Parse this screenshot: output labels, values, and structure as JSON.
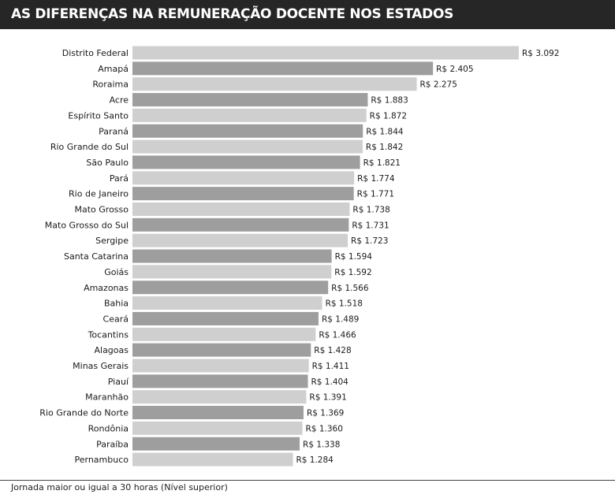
{
  "title": "AS DIFERENÇAS NA REMUNERAÇÃO DOCENTE NOS ESTADOS",
  "footer_note": "Jornada maior ou igual a 30 horas (Nível superior)",
  "colors": {
    "header_bg": "#262626",
    "header_text": "#ffffff",
    "bar_light": "#cfcfcf",
    "bar_dark": "#9e9e9e"
  },
  "chart_data": {
    "type": "bar",
    "orientation": "horizontal",
    "value_prefix": "R$ ",
    "categories": [
      "Distrito Federal",
      "Amapá",
      "Roraima",
      "Acre",
      "Espírito Santo",
      "Paraná",
      "Rio Grande do Sul",
      "São Paulo",
      "Pará",
      "Rio de Janeiro",
      "Mato Grosso",
      "Mato Grosso do Sul",
      "Sergipe",
      "Santa Catarina",
      "Goiás",
      "Amazonas",
      "Bahia",
      "Ceará",
      "Tocantins",
      "Alagoas",
      "Minas Gerais",
      "Piauí",
      "Maranhão",
      "Rio Grande do Norte",
      "Rondônia",
      "Paraíba",
      "Pernambuco"
    ],
    "values": [
      3092,
      2405,
      2275,
      1883,
      1872,
      1844,
      1842,
      1821,
      1774,
      1771,
      1738,
      1731,
      1723,
      1594,
      1592,
      1566,
      1518,
      1489,
      1466,
      1428,
      1411,
      1404,
      1391,
      1369,
      1360,
      1338,
      1284
    ],
    "value_labels": [
      "R$ 3.092",
      "R$ 2.405",
      "R$ 2.275",
      "R$ 1.883",
      "R$ 1.872",
      "R$ 1.844",
      "R$ 1.842",
      "R$ 1.821",
      "R$ 1.774",
      "R$ 1.771",
      "R$ 1.738",
      "R$ 1.731",
      "R$ 1.723",
      "R$ 1.594",
      "R$ 1.592",
      "R$ 1.566",
      "R$ 1.518",
      "R$ 1.489",
      "R$ 1.466",
      "R$ 1.428",
      "R$ 1.411",
      "R$ 1.404",
      "R$ 1.391",
      "R$ 1.369",
      "R$ 1.360",
      "R$ 1.338",
      "R$ 1.284"
    ],
    "bar_shade": [
      "light",
      "dark",
      "light",
      "dark",
      "light",
      "dark",
      "light",
      "dark",
      "light",
      "dark",
      "light",
      "dark",
      "light",
      "dark",
      "light",
      "dark",
      "light",
      "dark",
      "light",
      "dark",
      "light",
      "dark",
      "light",
      "dark",
      "light",
      "dark",
      "light"
    ],
    "xlim": [
      0,
      3092
    ],
    "grid": false,
    "legend": "none"
  }
}
